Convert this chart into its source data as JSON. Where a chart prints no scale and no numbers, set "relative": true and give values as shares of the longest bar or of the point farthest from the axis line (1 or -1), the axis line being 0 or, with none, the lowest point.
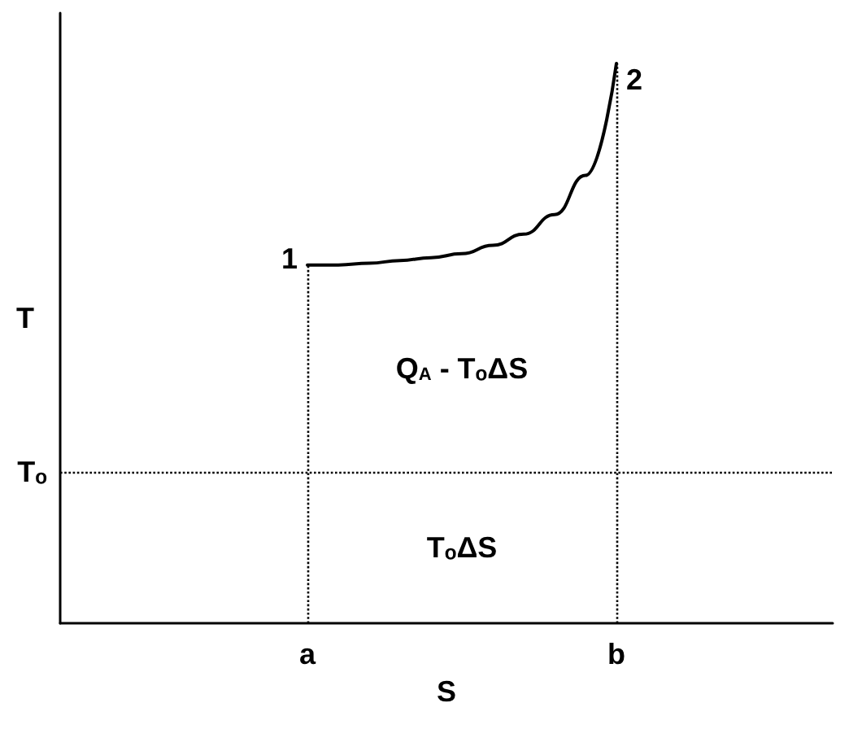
{
  "chart_data": {
    "type": "line",
    "relative": true,
    "xlabel": "S",
    "ylabel": "T",
    "categories": [
      null,
      null,
      null,
      null,
      null,
      null,
      null,
      null,
      "a",
      null,
      null,
      null,
      null,
      null,
      null,
      null,
      null,
      null,
      "b",
      null,
      null,
      null,
      null,
      null,
      null,
      null
    ],
    "series": [
      {
        "color": "#000000",
        "values": [
          null,
          null,
          null,
          null,
          null,
          null,
          null,
          null,
          0.64,
          0.64,
          0.643,
          0.648,
          0.653,
          0.66,
          0.675,
          0.695,
          0.73,
          0.8,
          1,
          null,
          null,
          null,
          null,
          null,
          null,
          null
        ]
      }
    ],
    "ref_lines": [
      {
        "axis": "y",
        "value": 0.27,
        "label": "Tₒ",
        "line_style": "dotted"
      },
      {
        "axis": "x",
        "value": "a",
        "line_style": "dotted"
      },
      {
        "axis": "x",
        "value": "b",
        "line_style": "dotted"
      }
    ],
    "annotations": [
      {
        "text": "1",
        "x": "a",
        "y": 0.64
      },
      {
        "text": "2",
        "x": "b",
        "y": 1
      },
      "Q$_{A}$ - TₒΔS",
      "TₒΔS"
    ],
    "grid": false,
    "marker": "none",
    "line_style": "solid"
  }
}
